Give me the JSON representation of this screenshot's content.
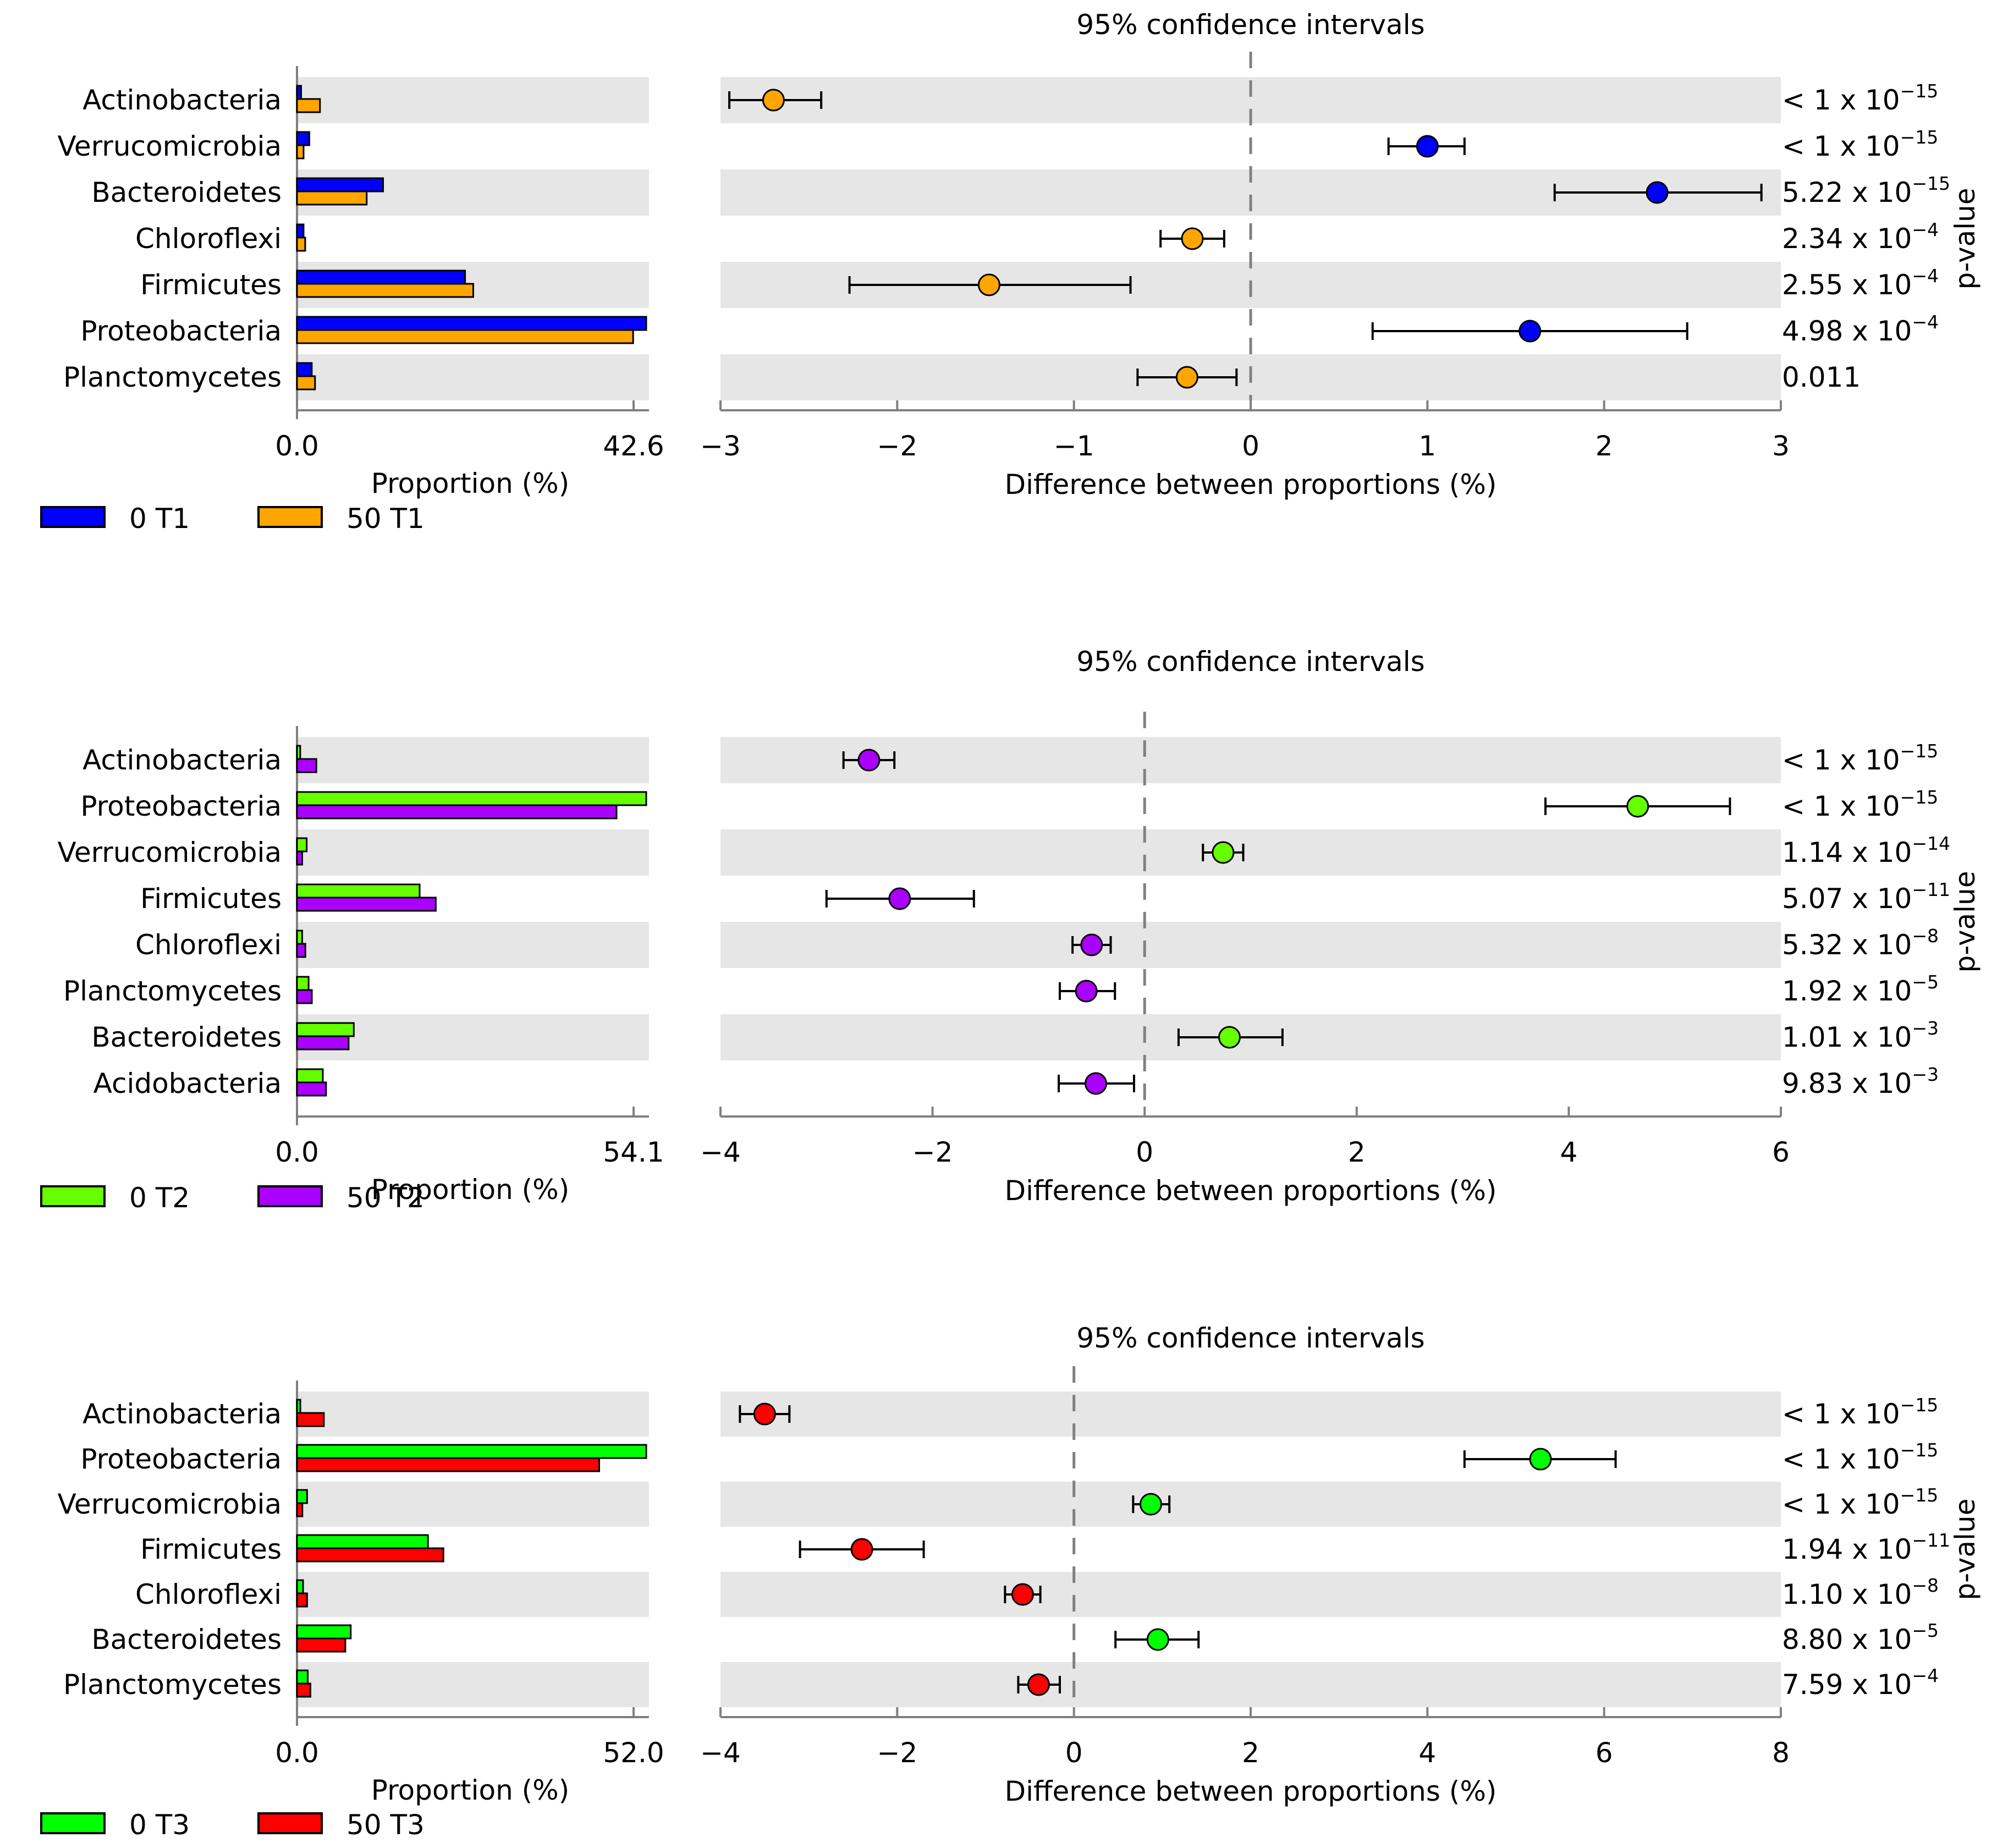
{
  "chart_data": [
    {
      "type": "bar",
      "panel": "T1",
      "categories": [
        "Actinobacteria",
        "Verrucomicrobia",
        "Bacteroidetes",
        "Chloroflexi",
        "Firmicutes",
        "Proteobacteria",
        "Planctomycetes"
      ],
      "proportion_series": [
        {
          "name": "0 T1",
          "color": "#0000ff",
          "values": [
            0.5,
            1.5,
            10.5,
            0.8,
            20.5,
            42.6,
            1.8
          ]
        },
        {
          "name": "50 T1",
          "color": "#ffa500",
          "values": [
            2.8,
            0.8,
            8.5,
            1.0,
            21.5,
            41.0,
            2.2
          ]
        }
      ],
      "proportion_axis": {
        "label": "Proportion (%)",
        "tick_labels": [
          "0.0",
          "42.6"
        ],
        "max": 42.6
      },
      "ci_title": "95% confidence intervals",
      "difference_axis": {
        "label": "Difference between proportions (%)",
        "range": [
          -3,
          3
        ],
        "ticks": [
          -3,
          -2,
          -1,
          0,
          1,
          2,
          3
        ]
      },
      "differences": [
        {
          "value": -2.7,
          "low": -2.95,
          "high": -2.43,
          "color": "#ffa500"
        },
        {
          "value": 1.0,
          "low": 0.78,
          "high": 1.21,
          "color": "#0000ff"
        },
        {
          "value": 2.3,
          "low": 1.72,
          "high": 2.89,
          "color": "#0000ff"
        },
        {
          "value": -0.33,
          "low": -0.51,
          "high": -0.15,
          "color": "#ffa500"
        },
        {
          "value": -1.48,
          "low": -2.27,
          "high": -0.68,
          "color": "#ffa500"
        },
        {
          "value": 1.58,
          "low": 0.69,
          "high": 2.47,
          "color": "#0000ff"
        },
        {
          "value": -0.36,
          "low": -0.64,
          "high": -0.08,
          "color": "#ffa500"
        }
      ],
      "pvalues": [
        {
          "mantissa": "< 1 x 10",
          "exp": "−15"
        },
        {
          "mantissa": "< 1 x 10",
          "exp": "−15"
        },
        {
          "mantissa": "5.22 x 10",
          "exp": "−15"
        },
        {
          "mantissa": "2.34 x 10",
          "exp": "−4"
        },
        {
          "mantissa": "2.55 x 10",
          "exp": "−4"
        },
        {
          "mantissa": "4.98 x 10",
          "exp": "−4"
        },
        {
          "mantissa": "0.011",
          "exp": ""
        }
      ],
      "pvalue_label": "p-value"
    },
    {
      "type": "bar",
      "panel": "T2",
      "categories": [
        "Actinobacteria",
        "Proteobacteria",
        "Verrucomicrobia",
        "Firmicutes",
        "Chloroflexi",
        "Planctomycetes",
        "Bacteroidetes",
        "Acidobacteria"
      ],
      "proportion_series": [
        {
          "name": "0 T2",
          "color": "#66ff00",
          "values": [
            0.5,
            54.1,
            1.5,
            19.0,
            0.8,
            1.8,
            8.8,
            4.0
          ]
        },
        {
          "name": "50 T2",
          "color": "#aa00ff",
          "values": [
            3.0,
            49.5,
            0.8,
            21.5,
            1.3,
            2.3,
            8.0,
            4.5
          ]
        }
      ],
      "proportion_axis": {
        "label": "Proportion (%)",
        "tick_labels": [
          "0.0",
          "54.1"
        ],
        "max": 54.1
      },
      "ci_title": "95% confidence intervals",
      "difference_axis": {
        "label": "Difference between proportions (%)",
        "range": [
          -4,
          6
        ],
        "ticks": [
          -4,
          -2,
          0,
          2,
          4,
          6
        ]
      },
      "differences": [
        {
          "value": -2.6,
          "low": -2.84,
          "high": -2.36,
          "color": "#aa00ff"
        },
        {
          "value": 4.65,
          "low": 3.78,
          "high": 5.52,
          "color": "#66ff00"
        },
        {
          "value": 0.74,
          "low": 0.55,
          "high": 0.93,
          "color": "#66ff00"
        },
        {
          "value": -2.31,
          "low": -3.0,
          "high": -1.61,
          "color": "#aa00ff"
        },
        {
          "value": -0.5,
          "low": -0.68,
          "high": -0.32,
          "color": "#aa00ff"
        },
        {
          "value": -0.55,
          "low": -0.8,
          "high": -0.28,
          "color": "#aa00ff"
        },
        {
          "value": 0.8,
          "low": 0.32,
          "high": 1.3,
          "color": "#66ff00"
        },
        {
          "value": -0.46,
          "low": -0.81,
          "high": -0.1,
          "color": "#aa00ff"
        }
      ],
      "pvalues": [
        {
          "mantissa": "< 1 x 10",
          "exp": "−15"
        },
        {
          "mantissa": "< 1 x 10",
          "exp": "−15"
        },
        {
          "mantissa": "1.14 x 10",
          "exp": "−14"
        },
        {
          "mantissa": "5.07 x 10",
          "exp": "−11"
        },
        {
          "mantissa": "5.32 x 10",
          "exp": "−8"
        },
        {
          "mantissa": "1.92 x 10",
          "exp": "−5"
        },
        {
          "mantissa": "1.01 x 10",
          "exp": "−3"
        },
        {
          "mantissa": "9.83 x 10",
          "exp": "−3"
        }
      ],
      "pvalue_label": "p-value"
    },
    {
      "type": "bar",
      "panel": "T3",
      "categories": [
        "Actinobacteria",
        "Proteobacteria",
        "Verrucomicrobia",
        "Firmicutes",
        "Chloroflexi",
        "Bacteroidetes",
        "Planctomycetes"
      ],
      "proportion_series": [
        {
          "name": "0 T3",
          "color": "#00ff00",
          "values": [
            0.5,
            52.0,
            1.5,
            19.5,
            0.9,
            8.0,
            1.6
          ]
        },
        {
          "name": "50 T3",
          "color": "#ff0000",
          "values": [
            4.0,
            45.0,
            0.8,
            21.8,
            1.5,
            7.2,
            2.0
          ]
        }
      ],
      "proportion_axis": {
        "label": "Proportion (%)",
        "tick_labels": [
          "0.0",
          "52.0"
        ],
        "max": 52.0
      },
      "ci_title": "95% confidence intervals",
      "difference_axis": {
        "label": "Difference between proportions (%)",
        "range": [
          -4,
          8
        ],
        "ticks": [
          -4,
          -2,
          0,
          2,
          4,
          6,
          8
        ]
      },
      "differences": [
        {
          "value": -3.5,
          "low": -3.78,
          "high": -3.22,
          "color": "#ff0000"
        },
        {
          "value": 5.28,
          "low": 4.42,
          "high": 6.13,
          "color": "#00ff00"
        },
        {
          "value": 0.87,
          "low": 0.67,
          "high": 1.08,
          "color": "#00ff00"
        },
        {
          "value": -2.4,
          "low": -3.1,
          "high": -1.7,
          "color": "#ff0000"
        },
        {
          "value": -0.58,
          "low": -0.78,
          "high": -0.38,
          "color": "#ff0000"
        },
        {
          "value": 0.95,
          "low": 0.47,
          "high": 1.41,
          "color": "#00ff00"
        },
        {
          "value": -0.4,
          "low": -0.63,
          "high": -0.16,
          "color": "#ff0000"
        }
      ],
      "pvalues": [
        {
          "mantissa": "< 1 x 10",
          "exp": "−15"
        },
        {
          "mantissa": "< 1 x 10",
          "exp": "−15"
        },
        {
          "mantissa": "< 1 x 10",
          "exp": "−15"
        },
        {
          "mantissa": "1.94 x 10",
          "exp": "−11"
        },
        {
          "mantissa": "1.10 x 10",
          "exp": "−8"
        },
        {
          "mantissa": "8.80 x 10",
          "exp": "−5"
        },
        {
          "mantissa": "7.59 x 10",
          "exp": "−4"
        }
      ],
      "pvalue_label": "p-value"
    }
  ]
}
